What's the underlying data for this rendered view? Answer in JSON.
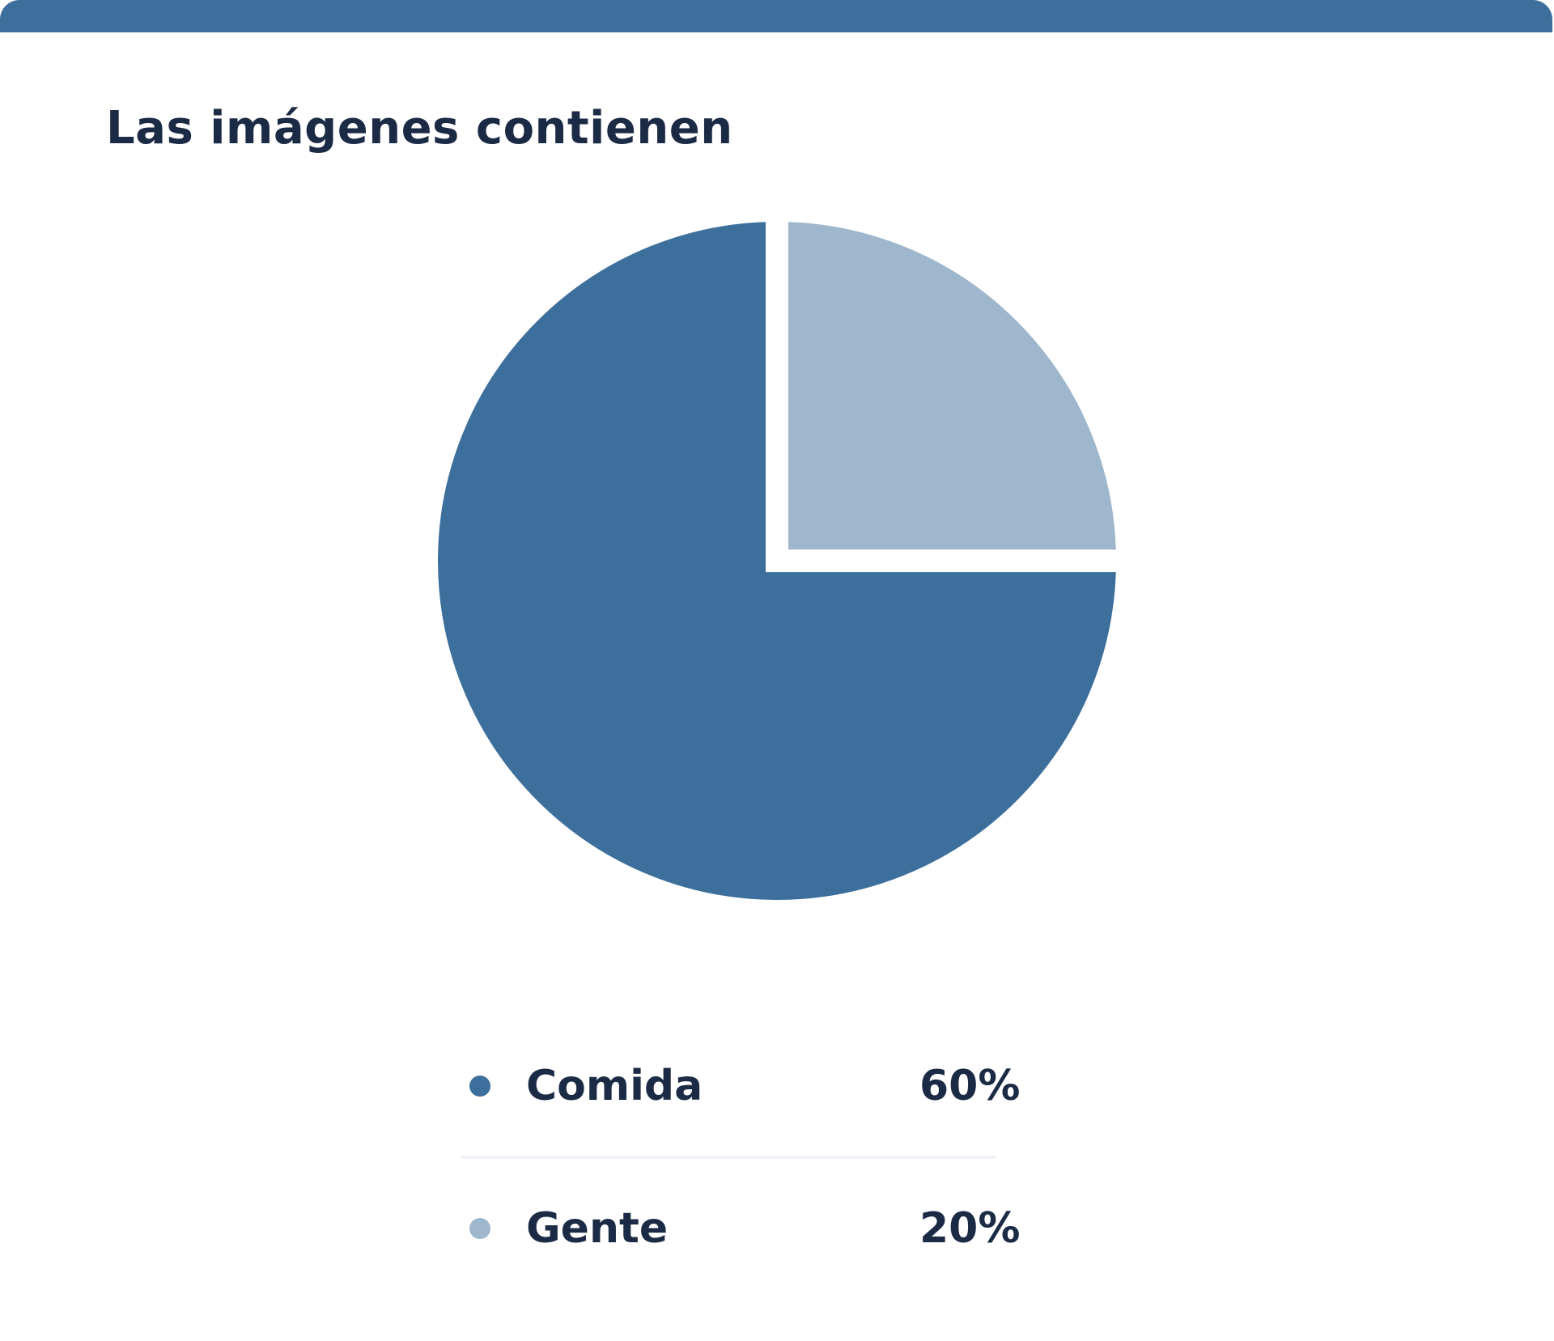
{
  "title": "Las imágenes contienen",
  "colors": {
    "accent": "#3d6f9c",
    "light": "#9eb7cc",
    "text": "#1c2b45",
    "divider": "#f1f2fb"
  },
  "chart_data": {
    "type": "pie",
    "title": "Las imágenes contienen",
    "slices": [
      {
        "label": "Comida",
        "value": 60,
        "display": "60%",
        "color": "#3d6f9c"
      },
      {
        "label": "Gente",
        "value": 20,
        "display": "20%",
        "color": "#9eb7cc"
      }
    ],
    "legend_position": "bottom"
  }
}
